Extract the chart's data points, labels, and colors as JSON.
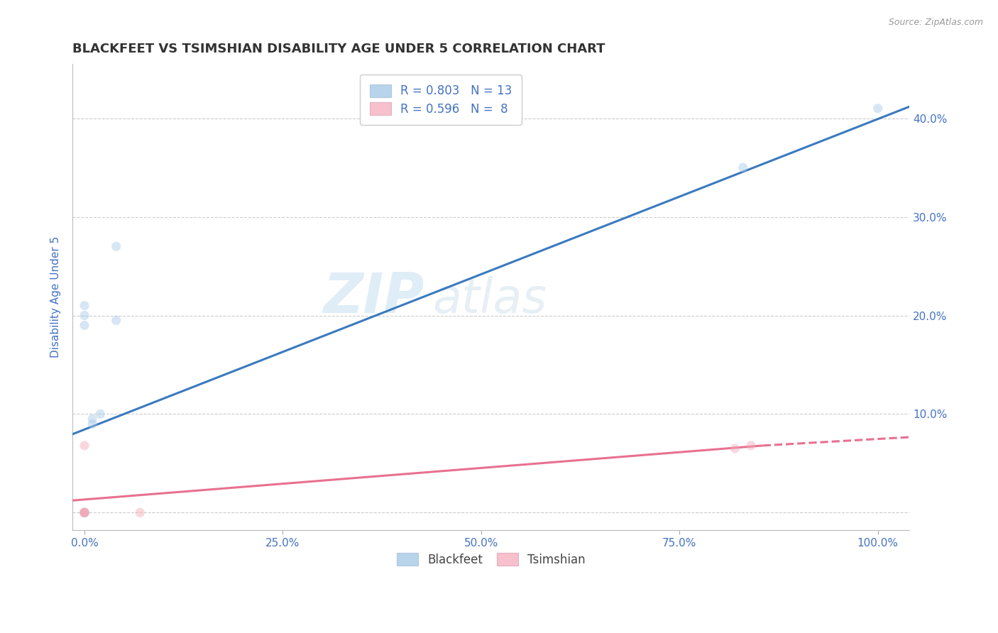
{
  "title": "BLACKFEET VS TSIMSHIAN DISABILITY AGE UNDER 5 CORRELATION CHART",
  "source_text": "Source: ZipAtlas.com",
  "ylabel": "Disability Age Under 5",
  "watermark_zip": "ZIP",
  "watermark_atlas": "atlas",
  "blackfeet_x": [
    0.0,
    0.0,
    0.0,
    0.0,
    0.0,
    0.0,
    0.01,
    0.01,
    0.02,
    0.04,
    0.04,
    0.83,
    1.0
  ],
  "blackfeet_y": [
    0.0,
    0.0,
    0.0,
    0.19,
    0.2,
    0.21,
    0.09,
    0.095,
    0.1,
    0.195,
    0.27,
    0.35,
    0.41
  ],
  "tsimshian_x": [
    0.0,
    0.0,
    0.0,
    0.0,
    0.0,
    0.07,
    0.82,
    0.84
  ],
  "tsimshian_y": [
    0.0,
    0.0,
    0.0,
    0.0,
    0.068,
    0.0,
    0.065,
    0.068
  ],
  "blue_line_start_x": -0.02,
  "blue_line_end_x": 1.05,
  "blue_line_start_y": 0.078,
  "blue_line_end_y": 0.415,
  "pink_line_start_x": -0.02,
  "pink_line_solid_end_x": 0.855,
  "pink_line_dash_end_x": 1.05,
  "pink_line_start_y": 0.012,
  "pink_line_solid_end_y": 0.068,
  "pink_line_dash_end_y": 0.077,
  "blackfeet_R": 0.803,
  "blackfeet_N": 13,
  "tsimshian_R": 0.596,
  "tsimshian_N": 8,
  "blue_scatter_color": "#a8c8e8",
  "blue_line_color": "#3a7abf",
  "pink_scatter_color": "#f5a8b8",
  "pink_line_color": "#e87090",
  "legend_blue_color": "#b8d4ea",
  "legend_pink_color": "#f8c0cc",
  "title_color": "#333333",
  "rn_color": "#4472c4",
  "tick_label_color": "#4472c4",
  "grid_color": "#cccccc",
  "background_color": "#ffffff",
  "xmin": -0.015,
  "xmax": 1.04,
  "ymin": -0.018,
  "ymax": 0.455,
  "xticks": [
    0.0,
    0.25,
    0.5,
    0.75,
    1.0
  ],
  "yticks": [
    0.0,
    0.1,
    0.2,
    0.3,
    0.4
  ],
  "ytick_labels_right": [
    "",
    "10.0%",
    "20.0%",
    "30.0%",
    "40.0%"
  ],
  "xtick_labels": [
    "0.0%",
    "25.0%",
    "50.0%",
    "75.0%",
    "100.0%"
  ],
  "marker_size": 90,
  "marker_alpha": 0.45,
  "line_width": 2.2
}
